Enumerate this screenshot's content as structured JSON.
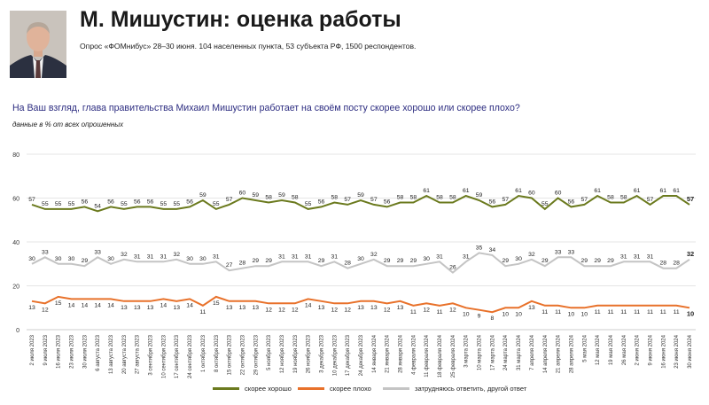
{
  "header": {
    "title": "М. Мишустин: оценка работы",
    "subtitle": "Опрос «ФОМнибус» 28–30 июня. 104 населенных пункта, 53 субъекта РФ, 1500 респондентов."
  },
  "question": "На Ваш взгляд, глава правительства Михаил Мишустин работает на своём посту скорее хорошо или скорее плохо?",
  "unit_note": "данные в % от всех опрошенных",
  "chart_data": {
    "type": "line",
    "ylim": [
      0,
      80
    ],
    "yticks": [
      0,
      20,
      40,
      60,
      80
    ],
    "grid": true,
    "legend_position": "bottom",
    "categories": [
      "2 июля 2023",
      "9 июля 2023",
      "16 июля 2023",
      "23 июля 2023",
      "30 июля 2023",
      "6 августа 2023",
      "13 августа 2023",
      "20 августа 2023",
      "27 августа 2023",
      "3 сентября 2023",
      "10 сентября 2023",
      "17 сентября 2023",
      "24 сентября 2023",
      "1 октября 2023",
      "8 октября 2023",
      "15 октября 2023",
      "22 октября 2023",
      "29 октября 2023",
      "5 ноября 2023",
      "12 ноября 2023",
      "19 ноября 2023",
      "26 ноября 2023",
      "3 декабря 2023",
      "10 декабря 2023",
      "17 декабря 2023",
      "24 декабря 2023",
      "14 января 2024",
      "21 января 2024",
      "28 января 2024",
      "4 февраля 2024",
      "11 февраля 2024",
      "18 февраля 2024",
      "25 февраля 2024",
      "3 марта 2024",
      "10 марта 2024",
      "17 марта 2024",
      "24 марта 2024",
      "31 марта 2024",
      "7 апреля 2024",
      "14 апреля 2024",
      "21 апреля 2024",
      "28 апреля 2024",
      "5 мая 2024",
      "12 мая 2024",
      "19 мая 2024",
      "26 мая 2024",
      "2 июня 2024",
      "9 июня 2024",
      "16 июня 2024",
      "23 июня 2024",
      "30 июня 2024"
    ],
    "series": [
      {
        "name": "скорее хорошо",
        "color": "#6b7a1e",
        "values": [
          57,
          55,
          55,
          55,
          56,
          54,
          56,
          55,
          56,
          56,
          55,
          55,
          56,
          59,
          55,
          57,
          60,
          59,
          58,
          59,
          58,
          55,
          56,
          58,
          57,
          59,
          57,
          56,
          58,
          58,
          61,
          58,
          58,
          61,
          59,
          56,
          57,
          61,
          60,
          55,
          60,
          56,
          57,
          61,
          58,
          58,
          61,
          57,
          61,
          61,
          57
        ]
      },
      {
        "name": "скорее плохо",
        "color": "#e8712a",
        "values": [
          13,
          12,
          15,
          14,
          14,
          14,
          14,
          13,
          13,
          13,
          14,
          13,
          14,
          11,
          15,
          13,
          13,
          13,
          12,
          12,
          12,
          14,
          13,
          12,
          12,
          13,
          13,
          12,
          13,
          11,
          12,
          11,
          12,
          10,
          9,
          8,
          10,
          10,
          13,
          11,
          11,
          10,
          10,
          11,
          11,
          11,
          11,
          11,
          11,
          11,
          10
        ]
      },
      {
        "name": "затрудняюсь ответить, другой ответ",
        "color": "#c4c4c4",
        "values": [
          30,
          33,
          30,
          30,
          29,
          33,
          30,
          32,
          31,
          31,
          31,
          32,
          30,
          30,
          31,
          27,
          28,
          29,
          29,
          31,
          31,
          31,
          29,
          31,
          28,
          30,
          32,
          29,
          29,
          29,
          30,
          31,
          26,
          31,
          35,
          34,
          29,
          30,
          32,
          29,
          33,
          33,
          29,
          29,
          29,
          31,
          31,
          31,
          28,
          28,
          32
        ]
      }
    ]
  }
}
